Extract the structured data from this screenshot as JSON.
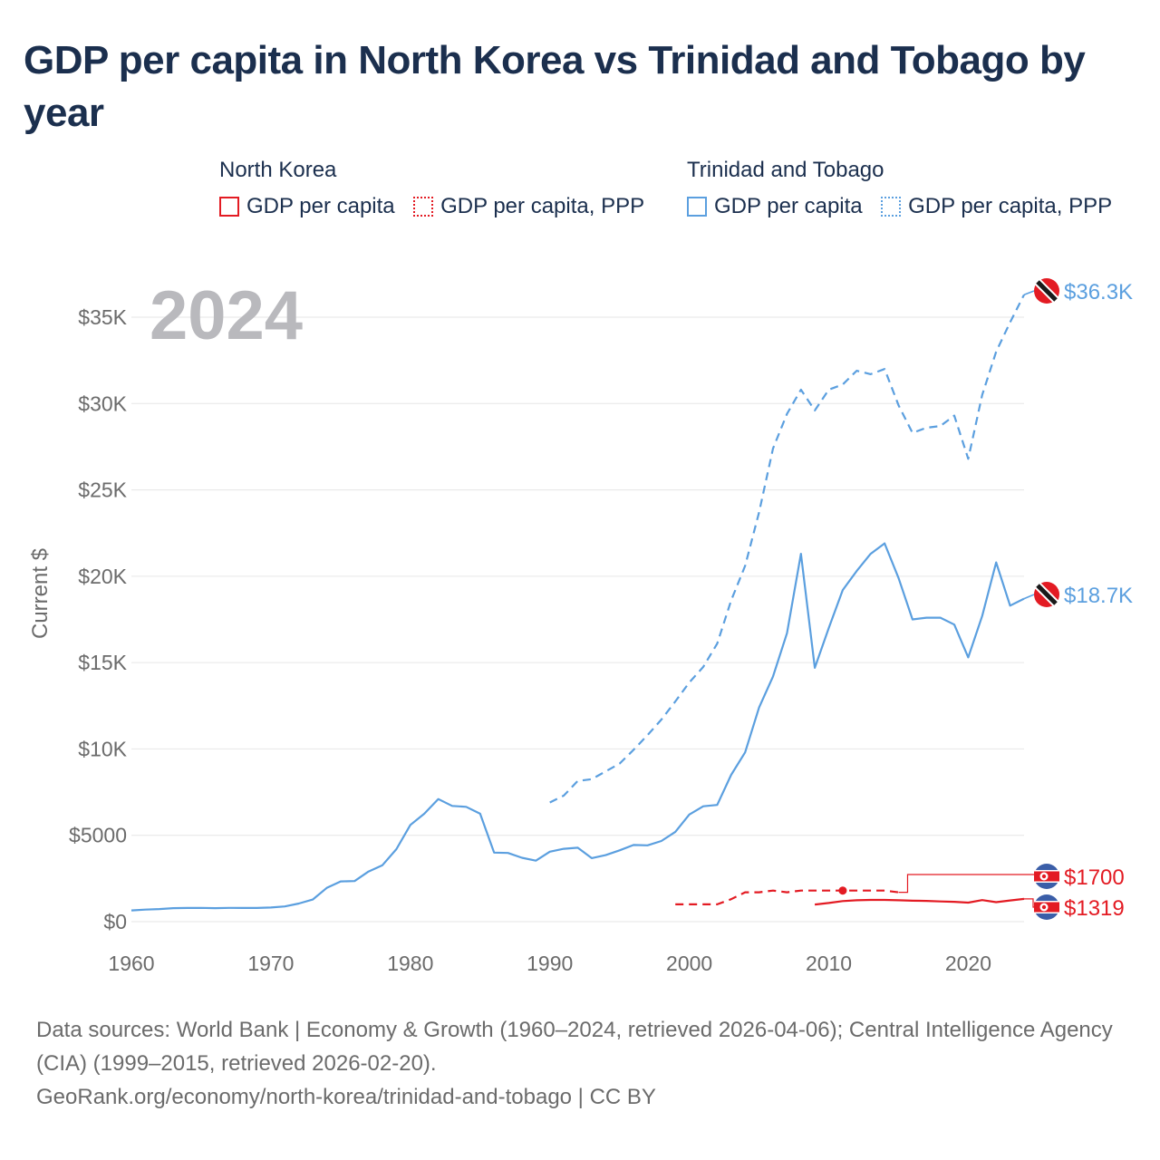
{
  "title": "GDP per capita in North Korea vs Trinidad and Tobago by year",
  "legend": {
    "groups": [
      {
        "name": "North Korea",
        "items": [
          "GDP per capita",
          "GDP per capita, PPP"
        ]
      },
      {
        "name": "Trinidad and Tobago",
        "items": [
          "GDP per capita",
          "GDP per capita, PPP"
        ]
      }
    ]
  },
  "colors": {
    "north_korea": "#e31b23",
    "trinidad": "#5b9fdf",
    "grid": "#e6e6e6",
    "title": "#1b2f4e"
  },
  "chart_data": {
    "type": "line",
    "title": "GDP per capita in North Korea vs Trinidad and Tobago by year",
    "xlabel": "",
    "ylabel": "Current $",
    "year_watermark": "2024",
    "xlim": [
      1960,
      2024
    ],
    "ylim": [
      0,
      36500
    ],
    "x_ticks": [
      1960,
      1970,
      1980,
      1990,
      2000,
      2010,
      2020
    ],
    "x_tick_labels": [
      "1960",
      "1970",
      "1980",
      "1990",
      "2000",
      "2010",
      "2020"
    ],
    "y_ticks": [
      0,
      5000,
      10000,
      15000,
      20000,
      25000,
      30000,
      35000
    ],
    "y_tick_labels": [
      "$0",
      "$5000",
      "$10K",
      "$15K",
      "$20K",
      "$25K",
      "$30K",
      "$35K"
    ],
    "series": [
      {
        "name": "Trinidad and Tobago – GDP per capita",
        "country": "Trinidad and Tobago",
        "style": "solid",
        "color": "#5b9fdf",
        "end_label": "$18.7K",
        "flag": "trinidad",
        "x": [
          1960,
          1961,
          1962,
          1963,
          1964,
          1965,
          1966,
          1967,
          1968,
          1969,
          1970,
          1971,
          1972,
          1973,
          1974,
          1975,
          1976,
          1977,
          1978,
          1979,
          1980,
          1981,
          1982,
          1983,
          1984,
          1985,
          1986,
          1987,
          1988,
          1989,
          1990,
          1991,
          1992,
          1993,
          1994,
          1995,
          1996,
          1997,
          1998,
          1999,
          2000,
          2001,
          2002,
          2003,
          2004,
          2005,
          2006,
          2007,
          2008,
          2009,
          2010,
          2011,
          2012,
          2013,
          2014,
          2015,
          2016,
          2017,
          2018,
          2019,
          2020,
          2021,
          2022,
          2023,
          2024
        ],
        "values": [
          650,
          700,
          730,
          780,
          790,
          800,
          780,
          800,
          790,
          790,
          820,
          880,
          1050,
          1280,
          1950,
          2330,
          2350,
          2900,
          3270,
          4200,
          5600,
          6250,
          7100,
          6700,
          6650,
          6250,
          4000,
          3980,
          3700,
          3530,
          4050,
          4220,
          4280,
          3680,
          3850,
          4130,
          4440,
          4420,
          4670,
          5200,
          6200,
          6680,
          6760,
          8500,
          9800,
          12400,
          14200,
          16700,
          21300,
          14700,
          17000,
          19200,
          20300,
          21300,
          21900,
          19900,
          17500,
          17600,
          17600,
          17200,
          15300,
          17700,
          20800,
          18300,
          18700
        ]
      },
      {
        "name": "Trinidad and Tobago – GDP per capita, PPP",
        "country": "Trinidad and Tobago",
        "style": "dashed",
        "color": "#5b9fdf",
        "end_label": "$36.3K",
        "flag": "trinidad",
        "x": [
          1990,
          1991,
          1992,
          1993,
          1994,
          1995,
          1996,
          1997,
          1998,
          1999,
          2000,
          2001,
          2002,
          2003,
          2004,
          2005,
          2006,
          2007,
          2008,
          2009,
          2010,
          2011,
          2012,
          2013,
          2014,
          2015,
          2016,
          2017,
          2018,
          2019,
          2020,
          2021,
          2022,
          2023,
          2024
        ],
        "values": [
          6900,
          7300,
          8150,
          8250,
          8700,
          9150,
          9950,
          10800,
          11700,
          12750,
          13850,
          14750,
          16100,
          18600,
          20600,
          23700,
          27400,
          29400,
          30800,
          29600,
          30800,
          31100,
          31900,
          31700,
          32000,
          29900,
          28300,
          28600,
          28700,
          29300,
          26800,
          30500,
          33000,
          34700,
          36300
        ]
      },
      {
        "name": "North Korea – GDP per capita",
        "country": "North Korea",
        "style": "solid",
        "color": "#e31b23",
        "end_label": "$1319",
        "flag": "north_korea",
        "x": [
          2009,
          2010,
          2011,
          2012,
          2013,
          2014,
          2015,
          2016,
          2017,
          2018,
          2019,
          2020,
          2021,
          2022,
          2023,
          2024
        ],
        "values": [
          994,
          1080,
          1190,
          1240,
          1260,
          1260,
          1240,
          1210,
          1200,
          1170,
          1150,
          1100,
          1250,
          1130,
          1230,
          1319
        ]
      },
      {
        "name": "North Korea – GDP per capita, PPP",
        "country": "North Korea",
        "style": "dashed",
        "color": "#e31b23",
        "end_label": "$1700",
        "flag": "north_korea",
        "x": [
          1999,
          2000,
          2001,
          2002,
          2003,
          2004,
          2005,
          2006,
          2007,
          2008,
          2009,
          2010,
          2011,
          2012,
          2013,
          2014,
          2015
        ],
        "values": [
          1000,
          1000,
          1000,
          1000,
          1300,
          1700,
          1700,
          1800,
          1700,
          1800,
          1800,
          1800,
          1800,
          1800,
          1800,
          1800,
          1700
        ],
        "marker_at": 2011
      }
    ]
  },
  "sources": {
    "line1": "Data sources: World Bank | Economy & Growth (1960–2024, retrieved 2026-04-06); Central Intelligence Agency (CIA) (1999–2015, retrieved 2026-02-20).",
    "line2": "GeoRank.org/economy/north-korea/trinidad-and-tobago | CC BY"
  }
}
